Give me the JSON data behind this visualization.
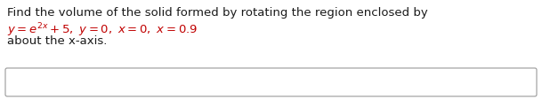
{
  "line1": "Find the volume of the solid formed by rotating the region enclosed by",
  "line2_math": "$y = e^{2x} + 5,\\ y = 0,\\ x = 0,\\ x = 0.9$",
  "line3": "about the x-axis.",
  "background_color": "#ffffff",
  "text_color": "#1a1a1a",
  "red_color": "#c00000",
  "box_edge_color": "#999999",
  "font_size": 9.5,
  "fig_width": 6.09,
  "fig_height": 1.13,
  "dpi": 100
}
